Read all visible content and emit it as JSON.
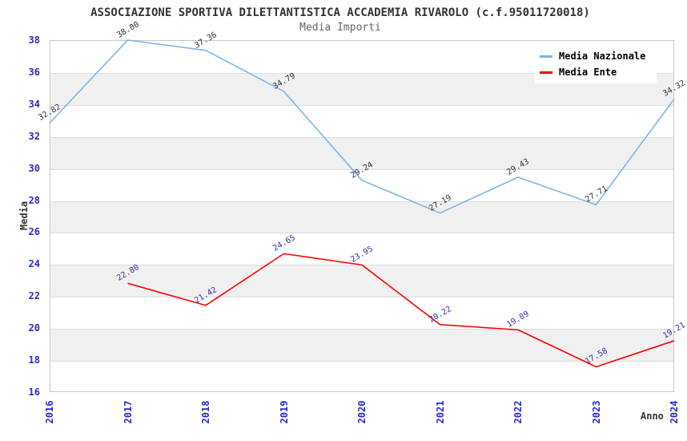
{
  "header": {
    "title": "ASSOCIAZIONE SPORTIVA DILETTANTISTICA ACCADEMIA RIVAROLO (c.f.95011720018)",
    "subtitle": "Media Importi"
  },
  "axes": {
    "x_label": "Anno",
    "y_label": "Media",
    "y_ticks": [
      16,
      18,
      20,
      22,
      24,
      26,
      28,
      30,
      32,
      34,
      36,
      38
    ],
    "x_ticks": [
      "2016",
      "2017",
      "2018",
      "2019",
      "2020",
      "2021",
      "2022",
      "2023",
      "2024"
    ]
  },
  "legend": {
    "entries": [
      "Media Nazionale",
      "Media Ente"
    ]
  },
  "colors": {
    "national_line": "#7cb5ec",
    "ente_line": "#ff0000",
    "national_label": "#333333",
    "ente_label": "#3333aa",
    "tick_label": "#2a2acc",
    "band_fill": "#f0f0f0",
    "gridline": "#dddddd",
    "plot_border": "#c8c8c8",
    "title_text": "#333333",
    "subtitle_text": "#666666"
  },
  "chart_data": {
    "type": "line",
    "title": "ASSOCIAZIONE SPORTIVA DILETTANTISTICA ACCADEMIA RIVAROLO (c.f.95011720018)",
    "subtitle": "Media Importi",
    "xlabel": "Anno",
    "ylabel": "Media",
    "categories": [
      "2016",
      "2017",
      "2018",
      "2019",
      "2020",
      "2021",
      "2022",
      "2023",
      "2024"
    ],
    "series": [
      {
        "name": "Media Nazionale",
        "color": "#7cb5ec",
        "label_color": "#333333",
        "values": [
          32.82,
          38.0,
          37.36,
          34.79,
          29.24,
          27.19,
          29.43,
          27.71,
          34.32
        ]
      },
      {
        "name": "Media Ente",
        "color": "#ff0000",
        "label_color": "#3333aa",
        "values": [
          null,
          22.8,
          21.42,
          24.65,
          23.95,
          20.22,
          19.89,
          17.58,
          19.21
        ]
      }
    ],
    "ylim": [
      16,
      38
    ],
    "y_tick_step": 2,
    "grid": true,
    "alternating_bands": true,
    "legend_position": "top-right",
    "data_labels": true
  }
}
